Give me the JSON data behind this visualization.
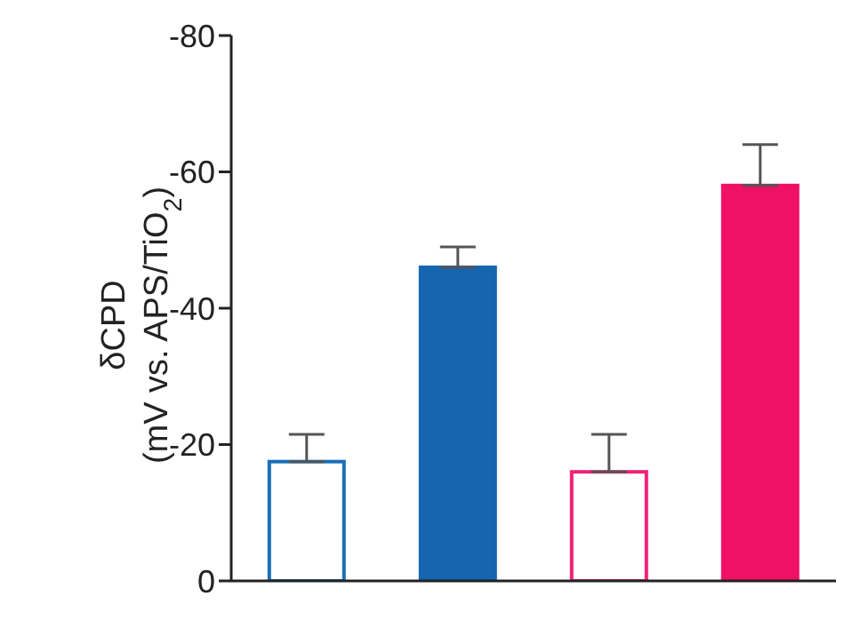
{
  "chart_data": {
    "type": "bar",
    "ylabel": "δCPD\n(mV vs. APS/TiO$_{2}$)",
    "categories": [
      null,
      null,
      null,
      null
    ],
    "values": [
      -17.5,
      -46,
      -16,
      -58
    ],
    "errors": [
      [
        -21.5,
        -17.5
      ],
      [
        -49,
        -46
      ],
      [
        -21.5,
        -16
      ],
      [
        -64,
        -58
      ]
    ],
    "colors": [
      "#1a6fb8",
      "#1565b0",
      "#ee2277",
      "#ee1166"
    ],
    "ylim": [
      0,
      -80
    ],
    "yticks": [
      0,
      -20,
      -40,
      -60,
      -80
    ],
    "tick_labels": "y",
    "grid": false,
    "legend": false
  }
}
